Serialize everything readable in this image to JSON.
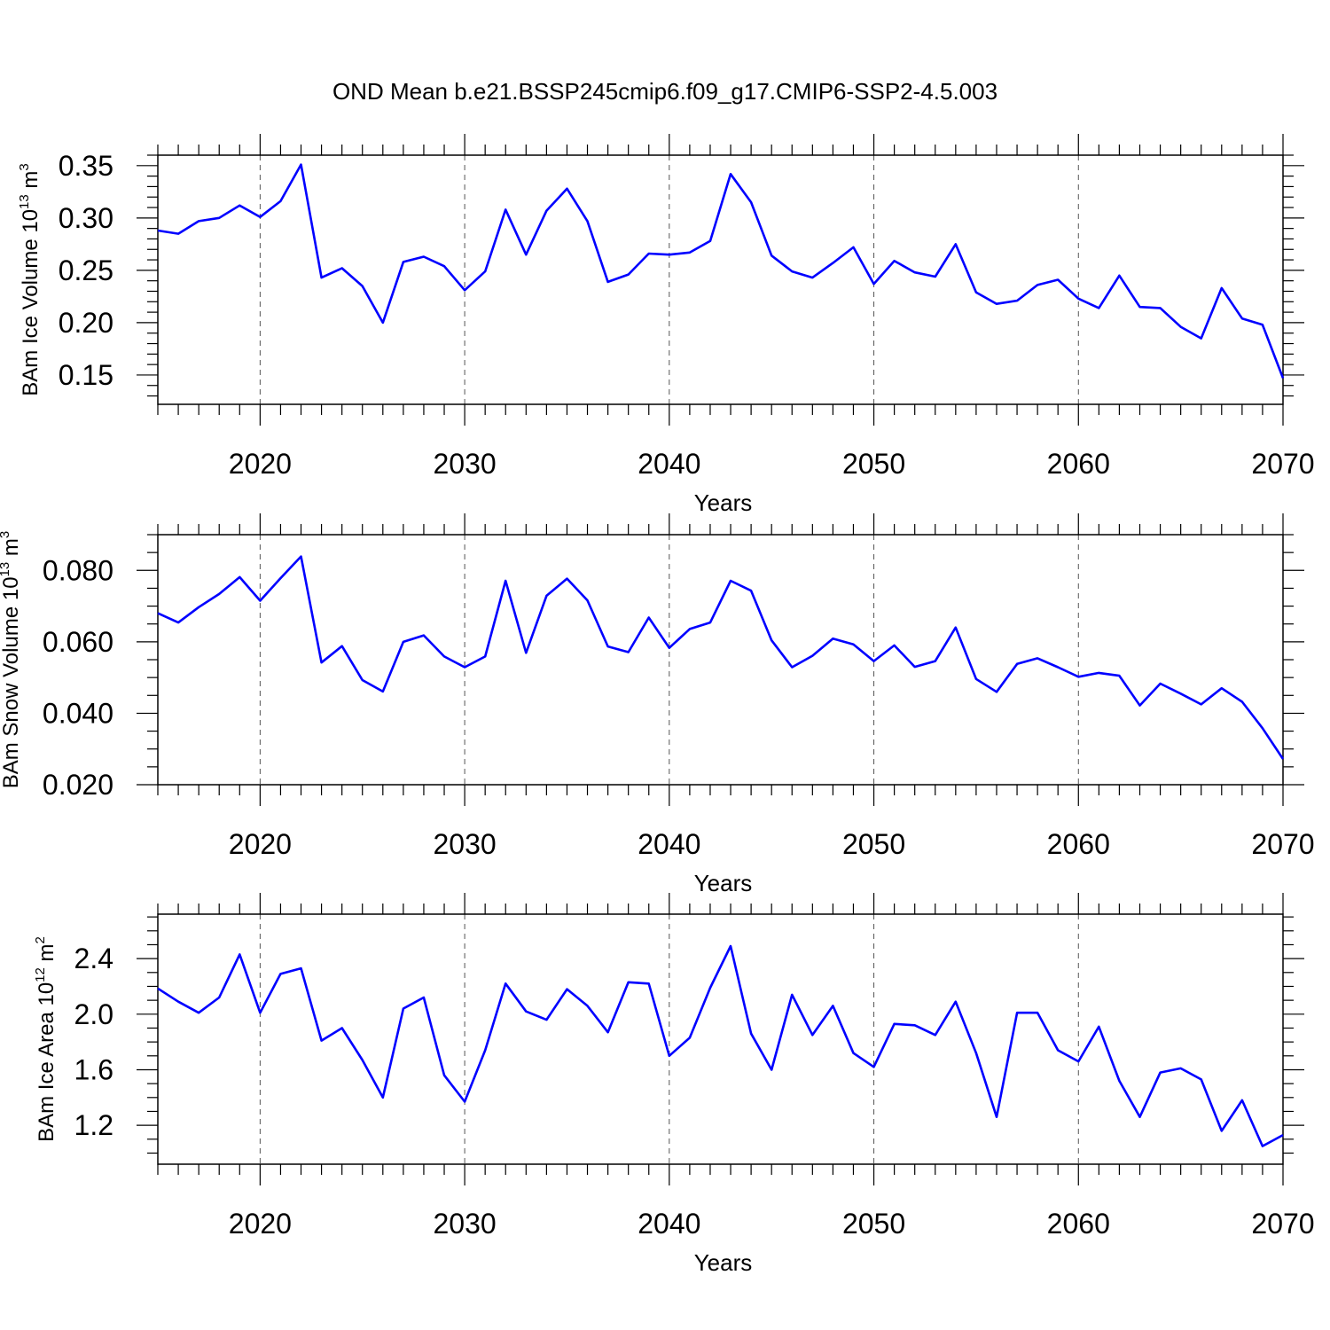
{
  "title": "OND Mean b.e21.BSSP245cmip6.f09_g17.CMIP6-SSP2-4.5.003",
  "colors": {
    "series": "#0000ff",
    "grid": "#555555"
  },
  "chart_data": [
    {
      "type": "line",
      "ylabel_main": "BAm Ice Volume 10",
      "ylabel_exp": "13",
      "ylabel_unit": "m",
      "ylabel_unit_exp": "3",
      "xlabel": "Years",
      "xlim": [
        2015,
        2070
      ],
      "ylim": [
        0.122,
        0.36
      ],
      "x_ticks": [
        "2020",
        "2030",
        "2040",
        "2050",
        "2060",
        "2070"
      ],
      "y_ticks": [
        "0.15",
        "0.20",
        "0.25",
        "0.30",
        "0.35"
      ],
      "y_tick_values": [
        0.15,
        0.2,
        0.25,
        0.3,
        0.35
      ],
      "y_minor_step": 0.01,
      "x_grid": true,
      "x": [
        2015,
        2016,
        2017,
        2018,
        2019,
        2020,
        2021,
        2022,
        2023,
        2024,
        2025,
        2026,
        2027,
        2028,
        2029,
        2030,
        2031,
        2032,
        2033,
        2034,
        2035,
        2036,
        2037,
        2038,
        2039,
        2040,
        2041,
        2042,
        2043,
        2044,
        2045,
        2046,
        2047,
        2048,
        2049,
        2050,
        2051,
        2052,
        2053,
        2054,
        2055,
        2056,
        2057,
        2058,
        2059,
        2060,
        2061,
        2062,
        2063,
        2064,
        2065,
        2066,
        2067,
        2068,
        2069,
        2070
      ],
      "values": [
        0.288,
        0.285,
        0.297,
        0.3,
        0.312,
        0.301,
        0.316,
        0.351,
        0.243,
        0.252,
        0.235,
        0.2,
        0.258,
        0.263,
        0.254,
        0.231,
        0.249,
        0.308,
        0.265,
        0.307,
        0.328,
        0.297,
        0.239,
        0.246,
        0.266,
        0.265,
        0.267,
        0.278,
        0.342,
        0.315,
        0.264,
        0.249,
        0.243,
        0.257,
        0.272,
        0.237,
        0.259,
        0.248,
        0.244,
        0.275,
        0.229,
        0.218,
        0.221,
        0.236,
        0.241,
        0.223,
        0.214,
        0.245,
        0.215,
        0.214,
        0.196,
        0.185,
        0.233,
        0.204,
        0.198,
        0.147
      ]
    },
    {
      "type": "line",
      "ylabel_main": "BAm Snow Volume 10",
      "ylabel_exp": "13",
      "ylabel_unit": "m",
      "ylabel_unit_exp": "3",
      "xlabel": "Years",
      "xlim": [
        2015,
        2070
      ],
      "ylim": [
        0.02,
        0.09
      ],
      "x_ticks": [
        "2020",
        "2030",
        "2040",
        "2050",
        "2060",
        "2070"
      ],
      "y_ticks": [
        "0.020",
        "0.040",
        "0.060",
        "0.080"
      ],
      "y_tick_values": [
        0.02,
        0.04,
        0.06,
        0.08
      ],
      "y_minor_step": 0.005,
      "x_grid": true,
      "x": [
        2015,
        2016,
        2017,
        2018,
        2019,
        2020,
        2021,
        2022,
        2023,
        2024,
        2025,
        2026,
        2027,
        2028,
        2029,
        2030,
        2031,
        2032,
        2033,
        2034,
        2035,
        2036,
        2037,
        2038,
        2039,
        2040,
        2041,
        2042,
        2043,
        2044,
        2045,
        2046,
        2047,
        2048,
        2049,
        2050,
        2051,
        2052,
        2053,
        2054,
        2055,
        2056,
        2057,
        2058,
        2059,
        2060,
        2061,
        2062,
        2063,
        2064,
        2065,
        2066,
        2067,
        2068,
        2069,
        2070
      ],
      "values": [
        0.068,
        0.0654,
        0.0697,
        0.0734,
        0.0781,
        0.0715,
        0.0778,
        0.0839,
        0.0542,
        0.0588,
        0.0493,
        0.0461,
        0.06,
        0.0618,
        0.0559,
        0.0529,
        0.0559,
        0.0771,
        0.0569,
        0.0729,
        0.0777,
        0.0716,
        0.0587,
        0.0571,
        0.0668,
        0.0583,
        0.0636,
        0.0654,
        0.0771,
        0.0743,
        0.0604,
        0.0529,
        0.0561,
        0.0609,
        0.0593,
        0.0546,
        0.059,
        0.053,
        0.0546,
        0.064,
        0.0496,
        0.046,
        0.0538,
        0.0554,
        0.0529,
        0.0502,
        0.0513,
        0.0505,
        0.0422,
        0.0483,
        0.0455,
        0.0425,
        0.047,
        0.0432,
        0.0358,
        0.0272
      ]
    },
    {
      "type": "line",
      "ylabel_main": "BAm Ice Area 10",
      "ylabel_exp": "12",
      "ylabel_unit": "m",
      "ylabel_unit_exp": "2",
      "xlabel": "Years",
      "xlim": [
        2015,
        2070
      ],
      "ylim": [
        0.92,
        2.72
      ],
      "x_ticks": [
        "2020",
        "2030",
        "2040",
        "2050",
        "2060",
        "2070"
      ],
      "y_ticks": [
        "1.2",
        "1.6",
        "2.0",
        "2.4"
      ],
      "y_tick_values": [
        1.2,
        1.6,
        2.0,
        2.4
      ],
      "y_minor_step": 0.1,
      "x_grid": true,
      "x": [
        2015,
        2016,
        2017,
        2018,
        2019,
        2020,
        2021,
        2022,
        2023,
        2024,
        2025,
        2026,
        2027,
        2028,
        2029,
        2030,
        2031,
        2032,
        2033,
        2034,
        2035,
        2036,
        2037,
        2038,
        2039,
        2040,
        2041,
        2042,
        2043,
        2044,
        2045,
        2046,
        2047,
        2048,
        2049,
        2050,
        2051,
        2052,
        2053,
        2054,
        2055,
        2056,
        2057,
        2058,
        2059,
        2060,
        2061,
        2062,
        2063,
        2064,
        2065,
        2066,
        2067,
        2068,
        2069,
        2070
      ],
      "values": [
        2.185,
        2.09,
        2.01,
        2.12,
        2.43,
        2.01,
        2.29,
        2.33,
        1.81,
        1.9,
        1.67,
        1.4,
        2.04,
        2.12,
        1.56,
        1.37,
        1.74,
        2.22,
        2.02,
        1.96,
        2.18,
        2.06,
        1.87,
        2.23,
        2.22,
        1.7,
        1.83,
        2.19,
        2.49,
        1.86,
        1.6,
        2.14,
        1.85,
        2.06,
        1.72,
        1.62,
        1.93,
        1.92,
        1.85,
        2.09,
        1.72,
        1.26,
        2.01,
        2.01,
        1.74,
        1.66,
        1.91,
        1.52,
        1.26,
        1.58,
        1.61,
        1.53,
        1.16,
        1.38,
        1.05,
        1.13
      ]
    }
  ]
}
